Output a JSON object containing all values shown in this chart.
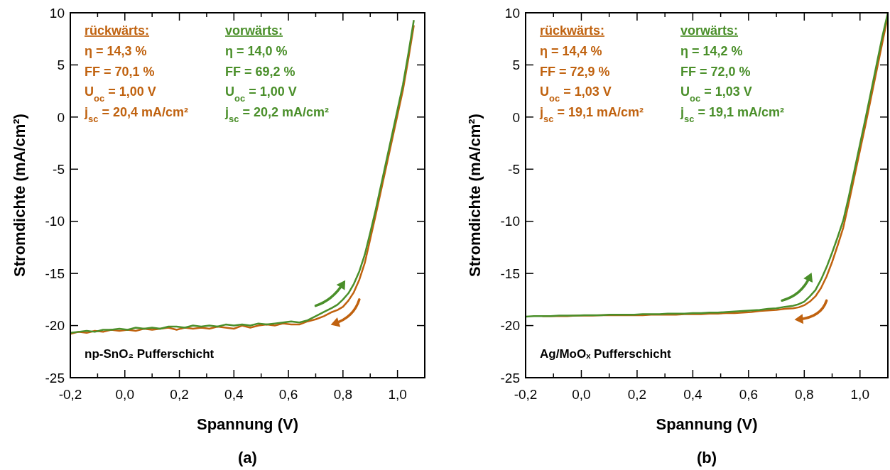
{
  "chart_data": [
    {
      "type": "line",
      "title": "(a)",
      "xlabel": "Spannung (V)",
      "ylabel": "Stromdichte (mA/cm²)",
      "xlim": [
        -0.2,
        1.1
      ],
      "ylim": [
        -25,
        10
      ],
      "xticks": [
        {
          "value": -0.2,
          "label": "-0,2"
        },
        {
          "value": -0.1,
          "label": null
        },
        {
          "value": 0,
          "label": "0,0"
        },
        {
          "value": 0.1,
          "label": null
        },
        {
          "value": 0.2,
          "label": "0,2"
        },
        {
          "value": 0.3,
          "label": null
        },
        {
          "value": 0.4,
          "label": "0,4"
        },
        {
          "value": 0.5,
          "label": null
        },
        {
          "value": 0.6,
          "label": "0,6"
        },
        {
          "value": 0.7,
          "label": null
        },
        {
          "value": 0.8,
          "label": "0,8"
        },
        {
          "value": 0.9,
          "label": null
        },
        {
          "value": 1.0,
          "label": "1,0"
        }
      ],
      "yticks": [
        -25,
        -20,
        -15,
        -10,
        -5,
        0,
        5,
        10
      ],
      "grid": false,
      "legend": "top left",
      "marker": "none",
      "line_style": "solid",
      "annotations": [
        "η = 14,3 %",
        "FF = 70,1 %",
        "U$_{oc}$ = 1,00 V",
        "j$_{sc}$ = 20,4 mA/cm²",
        "η = 14,0 %",
        "FF = 69,2 %",
        "U$_{oc}$ = 1,00 V",
        "j$_{sc}$ = 20,2 mA/cm²",
        "np-SnO₂ Pufferschicht"
      ],
      "series": [
        {
          "name": "rückwärts:",
          "color": "#c0620f",
          "x": [
            -0.2,
            -0.17,
            -0.14,
            -0.11,
            -0.08,
            -0.05,
            -0.02,
            0.01,
            0.04,
            0.07,
            0.1,
            0.13,
            0.16,
            0.19,
            0.22,
            0.25,
            0.28,
            0.31,
            0.34,
            0.37,
            0.4,
            0.43,
            0.46,
            0.49,
            0.52,
            0.55,
            0.58,
            0.61,
            0.64,
            0.67,
            0.7,
            0.73,
            0.76,
            0.78,
            0.8,
            0.82,
            0.84,
            0.86,
            0.88,
            0.9,
            0.92,
            0.94,
            0.96,
            0.98,
            1.0,
            1.02,
            1.04,
            1.06
          ],
          "values": [
            -20.8,
            -20.6,
            -20.7,
            -20.5,
            -20.6,
            -20.4,
            -20.5,
            -20.4,
            -20.5,
            -20.3,
            -20.4,
            -20.3,
            -20.2,
            -20.4,
            -20.2,
            -20.3,
            -20.2,
            -20.3,
            -20.1,
            -20.2,
            -20.3,
            -20.0,
            -20.2,
            -20.0,
            -19.9,
            -20.0,
            -19.8,
            -19.9,
            -19.9,
            -19.6,
            -19.4,
            -19.1,
            -18.7,
            -18.5,
            -18.2,
            -17.6,
            -16.8,
            -15.6,
            -14.0,
            -11.7,
            -9.4,
            -7.0,
            -4.6,
            -2.2,
            0.2,
            2.6,
            5.6,
            8.8
          ]
        },
        {
          "name": "vorwärts:",
          "color": "#4a8f2a",
          "x": [
            -0.2,
            -0.17,
            -0.14,
            -0.11,
            -0.08,
            -0.05,
            -0.02,
            0.01,
            0.04,
            0.07,
            0.1,
            0.13,
            0.16,
            0.19,
            0.22,
            0.25,
            0.28,
            0.31,
            0.34,
            0.37,
            0.4,
            0.43,
            0.46,
            0.49,
            0.52,
            0.55,
            0.58,
            0.61,
            0.64,
            0.67,
            0.7,
            0.73,
            0.76,
            0.78,
            0.8,
            0.82,
            0.84,
            0.86,
            0.88,
            0.9,
            0.92,
            0.94,
            0.96,
            0.98,
            1.0,
            1.02,
            1.04,
            1.06
          ],
          "values": [
            -20.7,
            -20.6,
            -20.5,
            -20.6,
            -20.4,
            -20.4,
            -20.3,
            -20.4,
            -20.2,
            -20.3,
            -20.2,
            -20.3,
            -20.1,
            -20.1,
            -20.2,
            -20.0,
            -20.1,
            -20.0,
            -20.1,
            -19.9,
            -20.0,
            -19.9,
            -20.0,
            -19.8,
            -19.9,
            -19.8,
            -19.7,
            -19.6,
            -19.7,
            -19.5,
            -19.1,
            -18.7,
            -18.3,
            -18.0,
            -17.5,
            -16.9,
            -16.0,
            -14.8,
            -13.2,
            -11.1,
            -8.9,
            -6.5,
            -4.1,
            -1.7,
            0.7,
            3.1,
            6.1,
            9.3
          ]
        }
      ]
    },
    {
      "type": "line",
      "title": "(b)",
      "xlabel": "Spannung (V)",
      "ylabel": "Stromdichte (mA/cm²)",
      "xlim": [
        -0.2,
        1.1
      ],
      "ylim": [
        -25,
        10
      ],
      "xticks": [
        {
          "value": -0.2,
          "label": "-0,2"
        },
        {
          "value": -0.1,
          "label": null
        },
        {
          "value": 0,
          "label": "0,0"
        },
        {
          "value": 0.1,
          "label": null
        },
        {
          "value": 0.2,
          "label": "0,2"
        },
        {
          "value": 0.3,
          "label": null
        },
        {
          "value": 0.4,
          "label": "0,4"
        },
        {
          "value": 0.5,
          "label": null
        },
        {
          "value": 0.6,
          "label": "0,6"
        },
        {
          "value": 0.7,
          "label": null
        },
        {
          "value": 0.8,
          "label": "0,8"
        },
        {
          "value": 0.9,
          "label": null
        },
        {
          "value": 1.0,
          "label": "1,0"
        }
      ],
      "yticks": [
        -25,
        -20,
        -15,
        -10,
        -5,
        0,
        5,
        10
      ],
      "grid": false,
      "legend": "top left",
      "marker": "none",
      "line_style": "solid",
      "annotations": [
        "η = 14,4 %",
        "FF = 72,9 %",
        "U$_{oc}$ = 1,03 V",
        "j$_{sc}$ = 19,1 mA/cm²",
        "η = 14,2 %",
        "FF = 72,0 %",
        "U$_{oc}$ = 1,03 V",
        "j$_{sc}$ = 19,1 mA/cm²",
        "Ag/MoOₓ Pufferschicht"
      ],
      "series": [
        {
          "name": "rückwärts:",
          "color": "#c0620f",
          "x": [
            -0.14,
            -0.11,
            -0.08,
            -0.05,
            -0.02,
            0.01,
            0.04,
            0.07,
            0.1,
            0.13,
            0.16,
            0.19,
            0.22,
            0.25,
            0.28,
            0.31,
            0.34,
            0.37,
            0.4,
            0.43,
            0.46,
            0.49,
            0.52,
            0.55,
            0.58,
            0.61,
            0.64,
            0.67,
            0.7,
            0.73,
            0.76,
            0.78,
            0.8,
            0.82,
            0.84,
            0.86,
            0.88,
            0.9,
            0.92,
            0.94,
            0.96,
            0.98,
            1.0,
            1.02,
            1.04,
            1.06,
            1.08,
            1.1
          ],
          "values": [
            -19.1,
            -19.1,
            -19.1,
            -19.1,
            -19.05,
            -19.05,
            -19.05,
            -19.0,
            -19.0,
            -19.0,
            -19.0,
            -19.0,
            -19.0,
            -18.95,
            -18.95,
            -18.95,
            -18.95,
            -18.9,
            -18.9,
            -18.9,
            -18.85,
            -18.85,
            -18.8,
            -18.8,
            -18.75,
            -18.7,
            -18.6,
            -18.55,
            -18.5,
            -18.4,
            -18.35,
            -18.25,
            -18.05,
            -17.7,
            -17.2,
            -16.4,
            -15.3,
            -13.9,
            -12.3,
            -10.6,
            -8.2,
            -5.7,
            -3.2,
            -0.7,
            1.9,
            4.5,
            7.1,
            9.7
          ]
        },
        {
          "name": "vorwärts:",
          "color": "#4a8f2a",
          "x": [
            -0.2,
            -0.17,
            -0.14,
            -0.11,
            -0.08,
            -0.05,
            -0.02,
            0.01,
            0.04,
            0.07,
            0.1,
            0.13,
            0.16,
            0.19,
            0.22,
            0.25,
            0.28,
            0.31,
            0.34,
            0.37,
            0.4,
            0.43,
            0.46,
            0.49,
            0.52,
            0.55,
            0.58,
            0.61,
            0.64,
            0.67,
            0.7,
            0.73,
            0.76,
            0.78,
            0.8,
            0.82,
            0.84,
            0.86,
            0.88,
            0.9,
            0.92,
            0.94,
            0.96,
            0.98,
            1.0,
            1.02,
            1.04,
            1.06,
            1.08,
            1.1
          ],
          "values": [
            -19.15,
            -19.1,
            -19.1,
            -19.1,
            -19.05,
            -19.05,
            -19.05,
            -19.0,
            -19.0,
            -19.0,
            -18.95,
            -18.95,
            -18.95,
            -18.95,
            -18.9,
            -18.9,
            -18.9,
            -18.85,
            -18.85,
            -18.85,
            -18.8,
            -18.8,
            -18.75,
            -18.75,
            -18.7,
            -18.65,
            -18.6,
            -18.55,
            -18.5,
            -18.4,
            -18.35,
            -18.2,
            -18.1,
            -17.95,
            -17.7,
            -17.2,
            -16.6,
            -15.6,
            -14.4,
            -13.0,
            -11.5,
            -9.9,
            -7.6,
            -5.1,
            -2.6,
            -0.1,
            2.5,
            5.1,
            7.7,
            10.0
          ]
        }
      ]
    }
  ]
}
